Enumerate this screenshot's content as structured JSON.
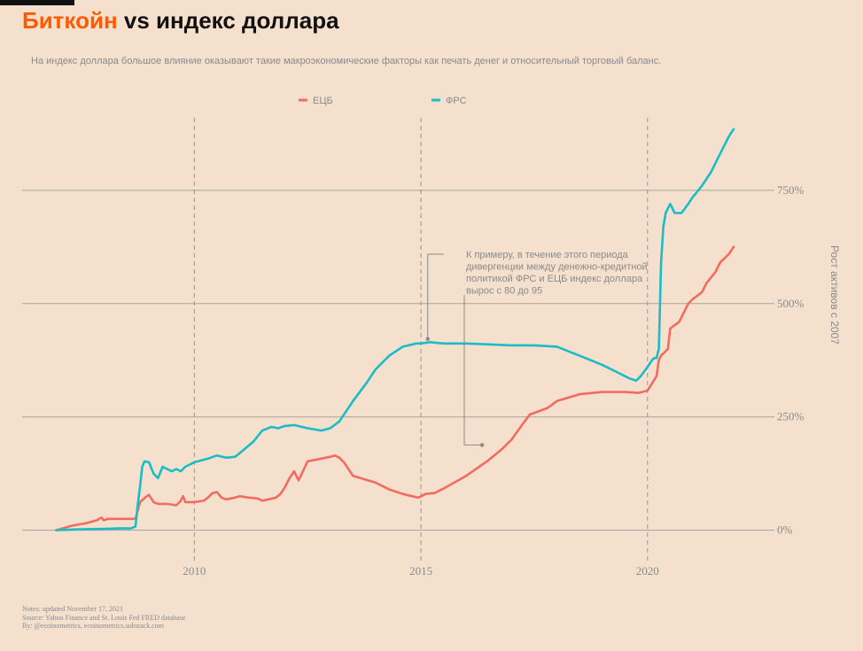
{
  "header": {
    "title_accent": "Биткойн",
    "title_rest": " vs индекс доллара",
    "subtitle": "На индекс доллара большое влияние оказывают такие макроэкономические факторы как печать денег и относительный торговый баланс."
  },
  "notes": [
    "Notes: updated November 17, 2021",
    "Source: Yahoo Finance and St. Louis Fed FRED database",
    "By: @ecoinometrics, ecoinometrics.substack.com"
  ],
  "chart_data": {
    "type": "line",
    "ylabel": "Рост активов с 2007",
    "xlim": [
      2006.2,
      2022.8
    ],
    "ylim": [
      -75,
      910
    ],
    "x_ticks": [
      2010,
      2015,
      2020
    ],
    "y_ticks": [
      0,
      250,
      500,
      750
    ],
    "y_tick_labels": [
      "0%",
      "250%",
      "500%",
      "750%"
    ],
    "grid_y": true,
    "vlines": [
      2010,
      2015,
      2020
    ],
    "legend_position": "top-center",
    "colors": {
      "ecb": "#f36b5e",
      "fed": "#1abcc7"
    },
    "annotation": {
      "lines": [
        "К примеру, в течение этого периода",
        "дивергенции между денежно-кредитной",
        "политикой ФРС и ЕЦБ индекс доллара",
        "вырос с 80 до 95"
      ],
      "point_fed": [
        2015.15,
        422
      ],
      "point_ecb": [
        2016.35,
        188
      ]
    },
    "series": [
      {
        "name": "ЕЦБ",
        "key": "ecb",
        "x": [
          2006.95,
          2007.3,
          2007.6,
          2007.85,
          2007.95,
          2008.0,
          2008.1,
          2008.3,
          2008.6,
          2008.7,
          2008.8,
          2008.95,
          2009.0,
          2009.1,
          2009.2,
          2009.4,
          2009.6,
          2009.7,
          2009.75,
          2009.8,
          2010.0,
          2010.2,
          2010.3,
          2010.4,
          2010.5,
          2010.6,
          2010.7,
          2010.8,
          2010.9,
          2011.0,
          2011.2,
          2011.4,
          2011.5,
          2011.8,
          2011.9,
          2012.0,
          2012.1,
          2012.2,
          2012.3,
          2012.5,
          2012.8,
          2013.0,
          2013.1,
          2013.2,
          2013.3,
          2013.5,
          2014.0,
          2014.3,
          2014.6,
          2014.8,
          2014.95,
          2015.1,
          2015.3,
          2015.5,
          2016.0,
          2016.5,
          2016.8,
          2017.0,
          2017.2,
          2017.4,
          2017.8,
          2018.0,
          2018.5,
          2019.0,
          2019.5,
          2019.8,
          2020.0,
          2020.2,
          2020.25,
          2020.3,
          2020.45,
          2020.5,
          2020.7,
          2020.8,
          2020.9,
          2021.0,
          2021.2,
          2021.3,
          2021.5,
          2021.6,
          2021.8,
          2021.9
        ],
        "values": [
          0,
          10,
          15,
          22,
          28,
          22,
          25,
          25,
          25,
          25,
          62,
          75,
          78,
          62,
          58,
          58,
          55,
          65,
          75,
          62,
          62,
          65,
          72,
          82,
          84,
          72,
          68,
          70,
          72,
          75,
          72,
          70,
          65,
          72,
          80,
          95,
          115,
          130,
          110,
          152,
          158,
          162,
          165,
          160,
          150,
          120,
          105,
          90,
          80,
          75,
          72,
          80,
          82,
          92,
          120,
          155,
          180,
          200,
          228,
          255,
          270,
          285,
          300,
          305,
          305,
          303,
          308,
          340,
          375,
          385,
          400,
          445,
          460,
          480,
          500,
          510,
          525,
          545,
          570,
          590,
          610,
          625
        ]
      },
      {
        "name": "ФРС",
        "key": "fed",
        "x": [
          2006.95,
          2007.5,
          2008.0,
          2008.3,
          2008.6,
          2008.7,
          2008.75,
          2008.8,
          2008.85,
          2008.9,
          2009.0,
          2009.1,
          2009.2,
          2009.3,
          2009.5,
          2009.6,
          2009.7,
          2009.8,
          2010.0,
          2010.3,
          2010.5,
          2010.7,
          2010.9,
          2011.0,
          2011.3,
          2011.5,
          2011.7,
          2011.85,
          2012.0,
          2012.2,
          2012.5,
          2012.8,
          2013.0,
          2013.2,
          2013.5,
          2013.8,
          2014.0,
          2014.3,
          2014.6,
          2014.9,
          2015.0,
          2015.2,
          2015.5,
          2016.0,
          2016.5,
          2017.0,
          2017.5,
          2018.0,
          2018.5,
          2019.0,
          2019.3,
          2019.6,
          2019.75,
          2019.85,
          2020.0,
          2020.1,
          2020.15,
          2020.2,
          2020.25,
          2020.3,
          2020.35,
          2020.4,
          2020.45,
          2020.5,
          2020.6,
          2020.75,
          2020.9,
          2021.0,
          2021.2,
          2021.4,
          2021.6,
          2021.8,
          2021.9
        ],
        "values": [
          0,
          2,
          3,
          4,
          4,
          8,
          55,
          95,
          140,
          152,
          150,
          125,
          115,
          140,
          130,
          135,
          130,
          140,
          150,
          158,
          165,
          160,
          162,
          170,
          195,
          220,
          228,
          225,
          230,
          232,
          225,
          220,
          225,
          240,
          285,
          325,
          355,
          385,
          405,
          412,
          412,
          415,
          412,
          412,
          410,
          408,
          408,
          405,
          385,
          365,
          350,
          335,
          330,
          340,
          360,
          375,
          380,
          380,
          400,
          590,
          670,
          700,
          710,
          720,
          700,
          700,
          720,
          735,
          760,
          790,
          830,
          870,
          885
        ]
      }
    ]
  }
}
